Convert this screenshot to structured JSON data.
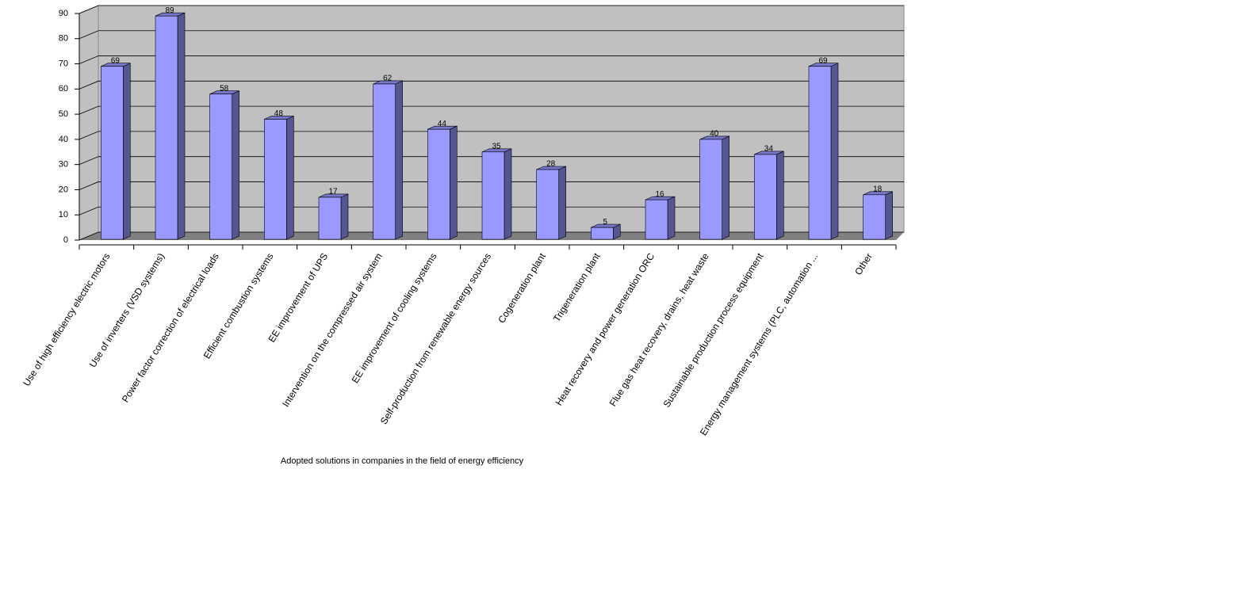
{
  "chart_data": {
    "type": "bar",
    "title": "Adopted solutions in companies in the field of energy efficiency",
    "categories": [
      "Use of high efficiency electric motors",
      "Use of inverters (VSD systems)",
      "Power factor correction of electrical loads",
      "Efficient combustion systems",
      "EE improvement of UPS",
      "Intervention on the compressed air system",
      "EE improvement of cooling systems",
      "Self-production from renewable energy sources",
      "Cogeneration plant",
      "Trigeneration plant",
      "Heat recovery and power generation ORC",
      "Flue gas heat recovery, drains, heat waste",
      "Sustainable production process equipment",
      "Energy management systems (PLC, automation ...",
      "Other"
    ],
    "values": [
      69,
      89,
      58,
      48,
      17,
      62,
      44,
      35,
      28,
      5,
      16,
      40,
      34,
      69,
      18
    ],
    "color": "#9999ff",
    "ylim": [
      0,
      90
    ],
    "yticks": [
      0,
      10,
      20,
      30,
      40,
      50,
      60,
      70,
      80,
      90
    ],
    "grid": true
  }
}
